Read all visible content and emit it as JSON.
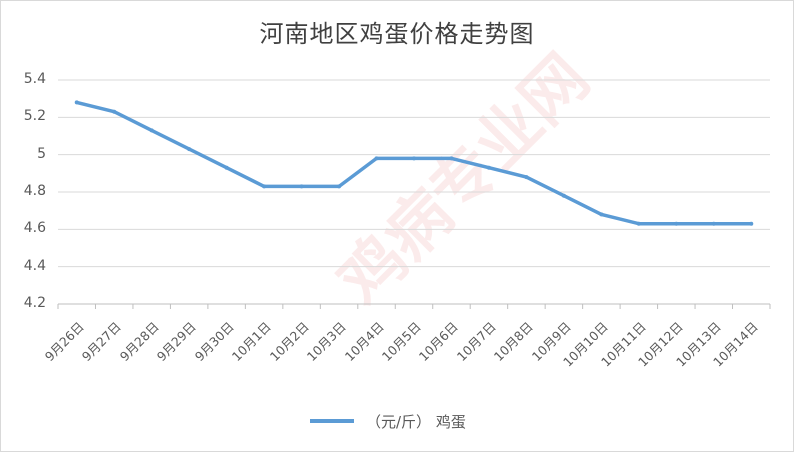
{
  "chart_data": {
    "type": "line",
    "title": "河南地区鸡蛋价格走势图",
    "xlabel": "",
    "ylabel": "",
    "categories": [
      "9月26日",
      "9月27日",
      "9月28日",
      "9月29日",
      "9月30日",
      "10月1日",
      "10月2日",
      "10月3日",
      "10月4日",
      "10月5日",
      "10月6日",
      "10月7日",
      "10月8日",
      "10月9日",
      "10月10日",
      "10月11日",
      "10月12日",
      "10月13日",
      "10月14日"
    ],
    "series": [
      {
        "name": "（元/斤） 鸡蛋",
        "color": "#5b9bd5",
        "values": [
          5.28,
          5.23,
          5.13,
          5.03,
          4.93,
          4.83,
          4.83,
          4.83,
          4.98,
          4.98,
          4.98,
          4.93,
          4.88,
          4.78,
          4.68,
          4.63,
          4.63,
          4.63,
          4.63
        ]
      }
    ],
    "yticks": [
      "4.2",
      "4.4",
      "4.6",
      "4.8",
      "5",
      "5.2",
      "5.4"
    ],
    "ylim": [
      4.2,
      5.4
    ],
    "grid": true,
    "legend_position": "bottom"
  }
}
